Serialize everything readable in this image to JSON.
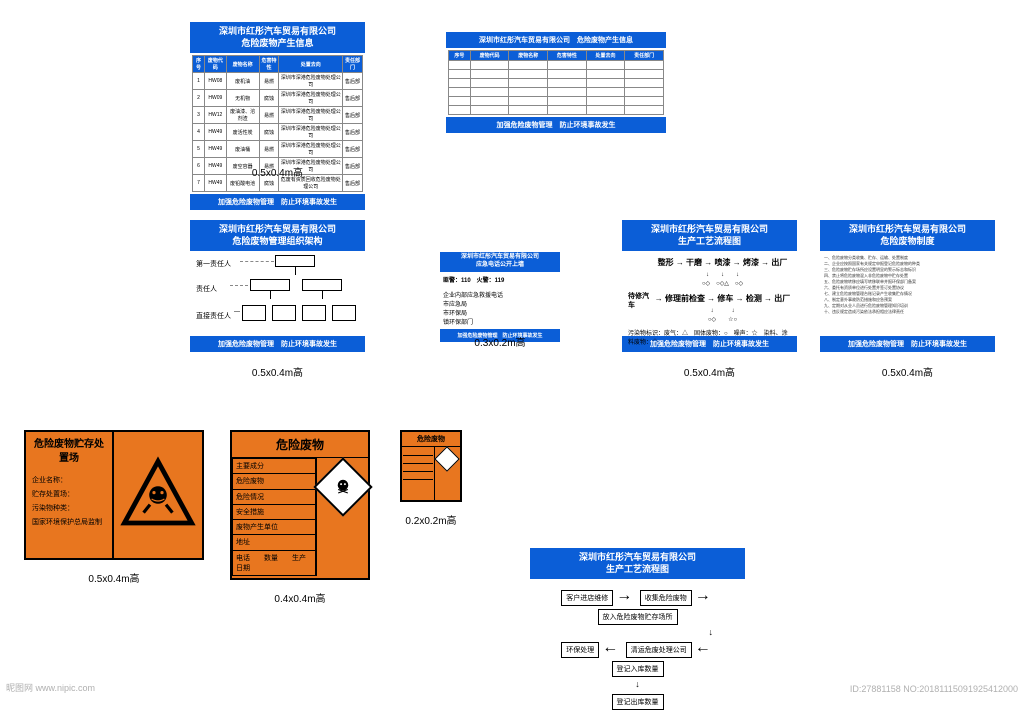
{
  "colors": {
    "blue": "#0b5ed7",
    "orange": "#e8761f",
    "black": "#000000",
    "white": "#ffffff",
    "gray": "#888888"
  },
  "company": "深圳市红彤汽车贸易有限公司",
  "footer_slogan": "加强危险废物管理　防止环境事故发生",
  "sign1": {
    "title1": "深圳市红彤汽车贸易有限公司",
    "title2": "危险废物产生信息",
    "headers": [
      "序号",
      "废物代码",
      "废物名称",
      "危害特性",
      "处置去向",
      "责任部门"
    ],
    "rows": [
      [
        "1",
        "HW08",
        "废机油",
        "易燃",
        "深圳市深港危险废物处理公司",
        "售后部"
      ],
      [
        "2",
        "HW09",
        "无机物",
        "腐蚀",
        "深圳市深港危险废物处理公司",
        "售后部"
      ],
      [
        "3",
        "HW12",
        "废油漆、溶剂渣",
        "易燃",
        "深圳市深港危险废物处理公司",
        "售后部"
      ],
      [
        "4",
        "HW49",
        "废活性炭",
        "腐蚀",
        "深圳市深港危险废物处理公司",
        "售后部"
      ],
      [
        "5",
        "HW49",
        "废油桶",
        "易燃",
        "深圳市深港危险废物处理公司",
        "售后部"
      ],
      [
        "6",
        "HW49",
        "废空容器",
        "易燃",
        "深圳市深港危险废物处理公司",
        "售后部"
      ],
      [
        "7",
        "HW49",
        "废铅酸电池",
        "腐蚀",
        "危废有资质回收危险废物处理公司",
        "售后部"
      ]
    ],
    "caption": "0.5x0.4m高"
  },
  "sign2": {
    "title": "深圳市红彤汽车贸易有限公司　危险废物产生信息",
    "headers": [
      "序号",
      "废物代码",
      "废物名称",
      "危害特性",
      "处置去向",
      "责任部门"
    ],
    "row_count": 6
  },
  "sign3": {
    "title1": "深圳市红彤汽车贸易有限公司",
    "title2": "危险废物管理组织架构",
    "level1": "第一责任人",
    "level2": "责任人",
    "level3": "直接责任人",
    "caption": "0.5x0.4m高"
  },
  "sign4": {
    "title1": "深圳市红彤汽车贸易有限公司",
    "title2": "应急电话公开上墙",
    "lines": [
      "匪警：110　火警：119",
      "",
      "企业内部应急救援电话",
      "市应急局",
      "市环保局",
      "镇环保部门"
    ],
    "caption": "0.3x0.2m高"
  },
  "sign5": {
    "title1": "深圳市红彤汽车贸易有限公司",
    "title2": "生产工艺流程图",
    "flow1": [
      "整形",
      "干磨",
      "喷漆",
      "烤漆",
      "出厂"
    ],
    "flow2_start": "待修汽车",
    "flow2": [
      "修理前检查",
      "修车",
      "检测",
      "出厂"
    ],
    "pollution_label": "污染物标识：",
    "pollution": "废气：△　固体废物：○　噪声：☆　染料、涂料废物：◇",
    "caption": "0.5x0.4m高"
  },
  "sign6": {
    "title1": "深圳市红彤汽车贸易有限公司",
    "title2": "危险废物制度",
    "caption": "0.5x0.4m高"
  },
  "sign7": {
    "left_title": "危险废物贮存处置场",
    "left_rows": [
      "企业名称：",
      "贮存处置场：",
      "污染物种类：",
      "国家环境保护总局监制"
    ],
    "caption": "0.5x0.4m高"
  },
  "sign8": {
    "title": "危险废物",
    "rows": [
      "主要成分",
      "危险废物",
      "危险情况",
      "安全措施",
      "废物产生单位",
      "地址",
      "电话　　数量　　生产日期"
    ],
    "caption": "0.4x0.4m高"
  },
  "sign9": {
    "title": "危险废物",
    "caption": "0.2x0.2m高"
  },
  "sign10": {
    "title1": "深圳市红彤汽车贸易有限公司",
    "title2": "生产工艺流程图",
    "boxes": [
      "客户进店维修",
      "收集危险废物",
      "放入危险废物贮存场所",
      "环保处理",
      "清运危废处理公司",
      "登记入库数量",
      "登记出库数量"
    ]
  },
  "watermark_left": "昵图网 www.nipic.com",
  "watermark_right": "ID:27881158 NO:20181115091925412000"
}
